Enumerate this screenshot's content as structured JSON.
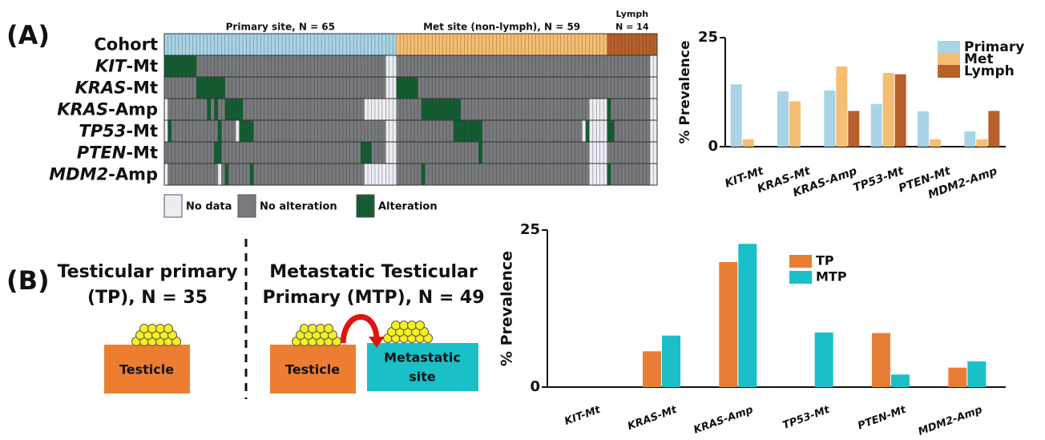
{
  "panels": {
    "a": "(A)",
    "b": "(B)"
  },
  "chart_data": [
    {
      "type": "oncoprint",
      "cohort_label": "Cohort",
      "groups": [
        {
          "name": [
            "Primary site, N = 65"
          ],
          "count": 65,
          "color": "#a8d4e6"
        },
        {
          "name": [
            "Met site (non-lymph), N = 59"
          ],
          "count": 59,
          "color": "#f6be72"
        },
        {
          "name": [
            "Lymph",
            "N = 14"
          ],
          "count": 14,
          "color": "#b85f2a"
        }
      ],
      "rows": [
        {
          "gene": "KIT",
          "suffix": "-Mt",
          "alterations": [
            0,
            1,
            2,
            3,
            4,
            5,
            6,
            7,
            8
          ],
          "no_data": [
            62,
            63,
            64,
            136,
            137
          ]
        },
        {
          "gene": "KRAS",
          "suffix": "-Mt",
          "alterations": [
            9,
            10,
            11,
            12,
            13,
            14,
            15,
            16,
            65,
            66,
            67,
            68,
            69,
            70
          ],
          "no_data": [
            62,
            63,
            64,
            136,
            137
          ]
        },
        {
          "gene": "KRAS",
          "suffix": "-Amp",
          "alterations": [
            12,
            14,
            17,
            18,
            19,
            20,
            21,
            72,
            73,
            74,
            75,
            76,
            77,
            78,
            79,
            80,
            81,
            82,
            124
          ],
          "no_data": [
            0,
            56,
            57,
            58,
            59,
            60,
            61,
            62,
            63,
            64,
            119,
            120,
            121,
            122,
            123,
            136,
            137
          ]
        },
        {
          "gene": "TP53",
          "suffix": "-Mt",
          "alterations": [
            1,
            15,
            21,
            22,
            23,
            24,
            81,
            82,
            83,
            84,
            85,
            86,
            87,
            88,
            118,
            124,
            125
          ],
          "no_data": [
            0,
            20,
            62,
            63,
            64,
            117,
            119,
            120,
            121,
            122,
            123,
            136,
            137
          ]
        },
        {
          "gene": "PTEN",
          "suffix": "-Mt",
          "alterations": [
            14,
            15,
            55,
            56,
            57,
            88
          ],
          "no_data": [
            62,
            63,
            64,
            119,
            120,
            121,
            122,
            123,
            136,
            137
          ]
        },
        {
          "gene": "MDM2",
          "suffix": "-Amp",
          "alterations": [
            17,
            24,
            72,
            124
          ],
          "no_data": [
            0,
            15,
            56,
            57,
            58,
            59,
            60,
            61,
            62,
            63,
            64,
            119,
            120,
            121,
            122,
            123,
            136,
            137
          ]
        }
      ],
      "legend": [
        {
          "name": "No data",
          "color": "#ececf4"
        },
        {
          "name": "No alteration",
          "color": "#77797c"
        },
        {
          "name": "Alteration",
          "color": "#145c32"
        }
      ]
    },
    {
      "type": "bar",
      "y_label": "% Prevalence",
      "categories": [
        "KIT-Mt",
        "KRAS-Mt",
        "KRAS-Amp",
        "TP53-Mt",
        "PTEN-Mt",
        "MDM2-Amp"
      ],
      "series": [
        {
          "name": "Primary",
          "color": "#a8d4e6",
          "values": [
            14.3,
            12.7,
            12.9,
            9.8,
            8.1,
            3.5
          ]
        },
        {
          "name": "Met",
          "color": "#f6be72",
          "values": [
            1.7,
            10.4,
            18.4,
            16.9,
            1.7,
            1.7
          ]
        },
        {
          "name": "Lymph",
          "color": "#b85f2a",
          "values": [
            0,
            0,
            8.2,
            16.6,
            0,
            8.2
          ]
        }
      ],
      "ylim": [
        0,
        25
      ],
      "yticks": [
        0,
        25
      ]
    },
    {
      "type": "bar",
      "y_label": "% Prevalence",
      "categories": [
        "KIT-Mt",
        "KRAS-Mt",
        "KRAS-Amp",
        "TP53-Mt",
        "PTEN-Mt",
        "MDM2-Amp"
      ],
      "series": [
        {
          "name": "TP",
          "color": "#e87e35",
          "values": [
            0,
            5.7,
            19.9,
            0,
            8.6,
            3.1
          ]
        },
        {
          "name": "MTP",
          "color": "#1bbfc8",
          "values": [
            0,
            8.2,
            22.8,
            8.7,
            2.0,
            4.1
          ]
        }
      ],
      "ylim": [
        0,
        25
      ],
      "yticks": [
        0,
        25
      ]
    }
  ],
  "diagram": {
    "left_title": [
      "Testicular primary",
      "(TP), N = 35"
    ],
    "right_title": [
      "Metastatic Testicular",
      "Primary (MTP), N = 49"
    ],
    "left_box": "Testicle",
    "right_box": "Testicle",
    "met_box": [
      "Metastatic",
      "site"
    ]
  }
}
